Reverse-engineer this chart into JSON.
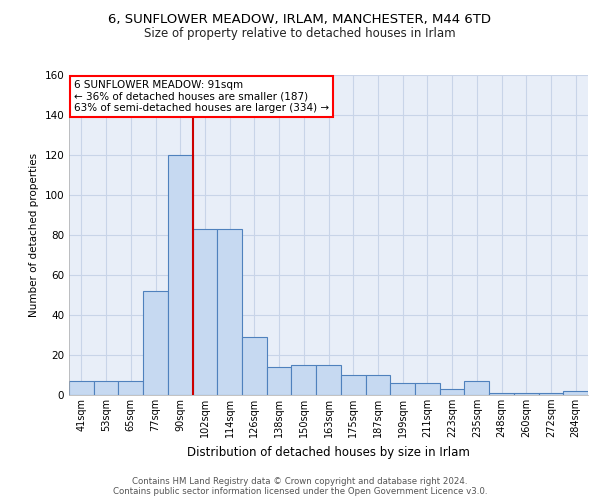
{
  "title1": "6, SUNFLOWER MEADOW, IRLAM, MANCHESTER, M44 6TD",
  "title2": "Size of property relative to detached houses in Irlam",
  "xlabel": "Distribution of detached houses by size in Irlam",
  "ylabel": "Number of detached properties",
  "categories": [
    "41sqm",
    "53sqm",
    "65sqm",
    "77sqm",
    "90sqm",
    "102sqm",
    "114sqm",
    "126sqm",
    "138sqm",
    "150sqm",
    "163sqm",
    "175sqm",
    "187sqm",
    "199sqm",
    "211sqm",
    "223sqm",
    "235sqm",
    "248sqm",
    "260sqm",
    "272sqm",
    "284sqm"
  ],
  "values": [
    7,
    7,
    7,
    52,
    120,
    83,
    83,
    29,
    14,
    15,
    15,
    10,
    10,
    6,
    6,
    3,
    7,
    1,
    1,
    1,
    2
  ],
  "bar_color": "#c6d9f1",
  "bar_edge_color": "#4f81bd",
  "red_line_x": 4.5,
  "annotation_line1": "6 SUNFLOWER MEADOW: 91sqm",
  "annotation_line2": "← 36% of detached houses are smaller (187)",
  "annotation_line3": "63% of semi-detached houses are larger (334) →",
  "annotation_box_color": "white",
  "annotation_box_edge_color": "red",
  "red_line_color": "#cc0000",
  "ylim": [
    0,
    160
  ],
  "yticks": [
    0,
    20,
    40,
    60,
    80,
    100,
    120,
    140,
    160
  ],
  "grid_color": "#c8d4e8",
  "footer1": "Contains HM Land Registry data © Crown copyright and database right 2024.",
  "footer2": "Contains public sector information licensed under the Open Government Licence v3.0.",
  "plot_bg_color": "#e8eef8"
}
